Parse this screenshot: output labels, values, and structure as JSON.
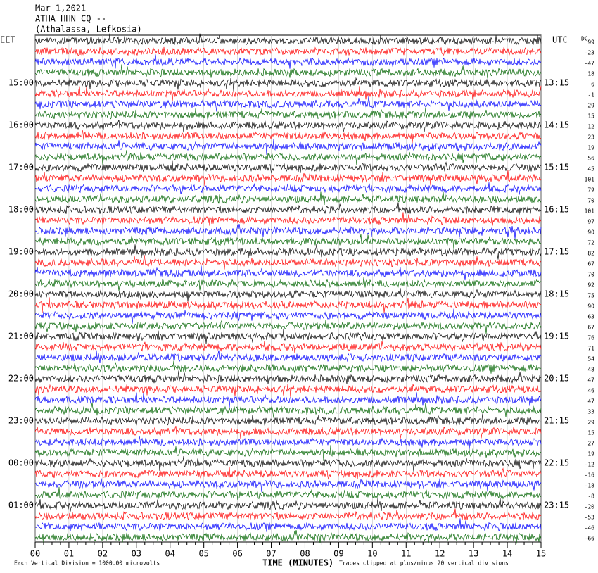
{
  "header": {
    "date": "Mar 1,2021",
    "station": "ATHA HHN CQ --",
    "location": "(Athalassa, Lefkosia)"
  },
  "left_axis": {
    "title": "EET",
    "labels": [
      "15:00",
      "16:00",
      "17:00",
      "18:00",
      "19:00",
      "20:00",
      "21:00",
      "22:00",
      "23:00",
      "00:00",
      "01:00"
    ]
  },
  "right_axis": {
    "title": "UTC",
    "labels": [
      "13:15",
      "14:15",
      "15:15",
      "16:15",
      "17:15",
      "18:15",
      "19:15",
      "20:15",
      "21:15",
      "22:15",
      "23:15"
    ]
  },
  "dc_offsets": {
    "title": "DC",
    "values": [
      "99",
      "-23",
      "-47",
      "18",
      "6",
      "-1",
      "29",
      "15",
      "12",
      "23",
      "19",
      "56",
      "45",
      "101",
      "79",
      "70",
      "101",
      "97",
      "90",
      "72",
      "82",
      "67",
      "70",
      "92",
      "75",
      "90",
      "63",
      "67",
      "76",
      "71",
      "54",
      "48",
      "47",
      "46",
      "47",
      "33",
      "29",
      "15",
      "27",
      "19",
      "-12",
      "-16",
      "-18",
      "-8",
      "-20",
      "-53",
      "-46",
      "-66"
    ]
  },
  "x_axis": {
    "title": "TIME (MINUTES)",
    "ticks": [
      "00",
      "01",
      "02",
      "03",
      "04",
      "05",
      "06",
      "07",
      "08",
      "09",
      "10",
      "11",
      "12",
      "13",
      "14",
      "15"
    ]
  },
  "footer": {
    "scale_note": "Each Vertical Division = 1000.00 microvolts",
    "clip_note": "Traces clipped at plus/minus 20 vertical divisions"
  },
  "trace_colors": [
    "#000000",
    "#ff0000",
    "#0000ff",
    "#006400"
  ]
}
